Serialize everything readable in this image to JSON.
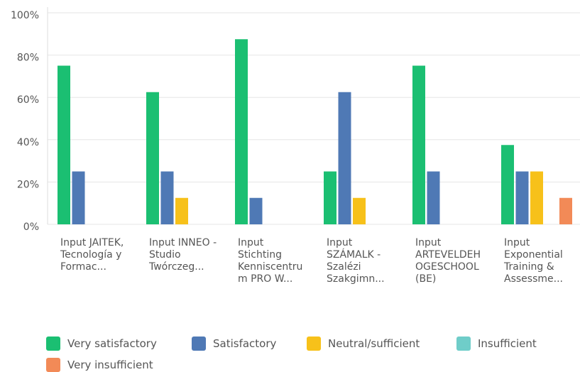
{
  "chart_data": {
    "type": "bar",
    "categories": [
      "Input JAITEK, Tecnología y Formac...",
      "Input INNEO - Studio Twórczeg...",
      "Input Stichting Kenniscentrum PRO W...",
      "Input SZÁMALK - Szalézi Szakgimn...",
      "Input ARTEVELDEHOGESCHOOL (BE)",
      "Input Exponential Training & Assessme..."
    ],
    "series": [
      {
        "name": "Very satisfactory",
        "color": "#1bbf72",
        "values": [
          75,
          62.5,
          87.5,
          25,
          75,
          37.5
        ]
      },
      {
        "name": "Satisfactory",
        "color": "#4f79b5",
        "values": [
          25,
          25,
          12.5,
          62.5,
          25,
          25
        ]
      },
      {
        "name": "Neutral/sufficient",
        "color": "#f7c11a",
        "values": [
          0,
          12.5,
          0,
          12.5,
          0,
          25
        ]
      },
      {
        "name": "Insufficient",
        "color": "#6fcdc9",
        "values": [
          0,
          0,
          0,
          0,
          0,
          0
        ]
      },
      {
        "name": "Very insufficient",
        "color": "#f28a57",
        "values": [
          0,
          0,
          0,
          0,
          0,
          12.5
        ]
      }
    ],
    "ylim": [
      0,
      100
    ],
    "yticks": [
      {
        "value": 0,
        "label": "0%"
      },
      {
        "value": 20,
        "label": "20%"
      },
      {
        "value": 40,
        "label": "40%"
      },
      {
        "value": 60,
        "label": "60%"
      },
      {
        "value": 80,
        "label": "80%"
      },
      {
        "value": 100,
        "label": "100%"
      }
    ],
    "grid": true
  }
}
